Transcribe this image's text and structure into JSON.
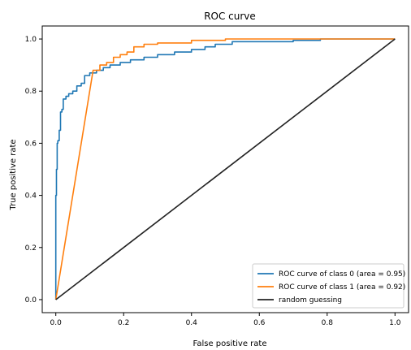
{
  "chart_data": {
    "type": "line",
    "title": "ROC curve",
    "xlabel": "False positive rate",
    "ylabel": "True positive rate",
    "xlim": [
      -0.04,
      1.04
    ],
    "ylim": [
      -0.05,
      1.05
    ],
    "xticks": [
      "0.0",
      "0.2",
      "0.4",
      "0.6",
      "0.8",
      "1.0"
    ],
    "yticks": [
      "0.0",
      "0.2",
      "0.4",
      "0.6",
      "0.8",
      "1.0"
    ],
    "grid": false,
    "legend_position": "lower-right",
    "series": [
      {
        "name": "ROC curve of class 0 (area = 0.95)",
        "color": "#1f77b4",
        "x": [
          0.0,
          0.0,
          0.002,
          0.002,
          0.004,
          0.004,
          0.006,
          0.006,
          0.01,
          0.01,
          0.014,
          0.014,
          0.018,
          0.018,
          0.022,
          0.022,
          0.03,
          0.03,
          0.038,
          0.038,
          0.05,
          0.05,
          0.062,
          0.062,
          0.075,
          0.075,
          0.085,
          0.085,
          0.1,
          0.1,
          0.12,
          0.12,
          0.14,
          0.14,
          0.16,
          0.16,
          0.19,
          0.19,
          0.22,
          0.22,
          0.26,
          0.26,
          0.3,
          0.3,
          0.35,
          0.35,
          0.4,
          0.4,
          0.44,
          0.44,
          0.47,
          0.47,
          0.52,
          0.52,
          0.62,
          0.62,
          0.7,
          0.7,
          0.78,
          0.78,
          1.0
        ],
        "y": [
          0.0,
          0.4,
          0.4,
          0.5,
          0.5,
          0.6,
          0.6,
          0.61,
          0.61,
          0.65,
          0.65,
          0.72,
          0.72,
          0.73,
          0.73,
          0.77,
          0.77,
          0.78,
          0.78,
          0.79,
          0.79,
          0.8,
          0.8,
          0.82,
          0.82,
          0.83,
          0.83,
          0.86,
          0.86,
          0.87,
          0.87,
          0.88,
          0.88,
          0.89,
          0.89,
          0.9,
          0.9,
          0.91,
          0.91,
          0.92,
          0.92,
          0.93,
          0.93,
          0.94,
          0.94,
          0.95,
          0.95,
          0.96,
          0.96,
          0.97,
          0.97,
          0.98,
          0.98,
          0.99,
          0.99,
          0.99,
          0.99,
          0.995,
          0.995,
          1.0,
          1.0
        ]
      },
      {
        "name": "ROC curve of class 1 (area = 0.92)",
        "color": "#ff7f0e",
        "x": [
          0.0,
          0.11,
          0.13,
          0.13,
          0.15,
          0.15,
          0.17,
          0.17,
          0.19,
          0.19,
          0.21,
          0.21,
          0.23,
          0.23,
          0.26,
          0.26,
          0.3,
          0.3,
          0.4,
          0.4,
          0.5,
          0.5,
          1.0
        ],
        "y": [
          0.0,
          0.88,
          0.88,
          0.9,
          0.9,
          0.91,
          0.91,
          0.93,
          0.93,
          0.94,
          0.94,
          0.95,
          0.95,
          0.97,
          0.97,
          0.98,
          0.98,
          0.985,
          0.985,
          0.995,
          0.995,
          1.0,
          1.0
        ]
      },
      {
        "name": "random guessing",
        "color": "#222222",
        "x": [
          0.0,
          1.0
        ],
        "y": [
          0.0,
          1.0
        ]
      }
    ]
  }
}
